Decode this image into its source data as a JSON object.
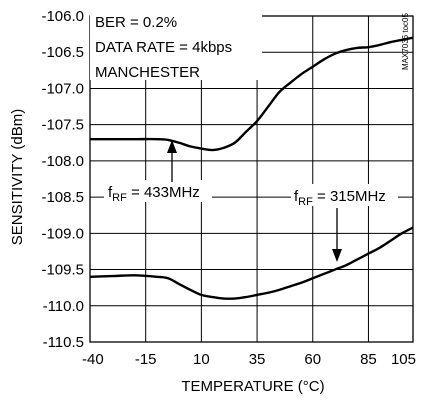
{
  "chart_data": {
    "type": "line",
    "title": "",
    "xlabel": "TEMPERATURE (°C)",
    "ylabel": "SENSITIVITY (dBm)",
    "xlim": [
      -40,
      105
    ],
    "ylim": [
      -110.5,
      -106.0
    ],
    "xticks": [
      -40,
      -15,
      10,
      35,
      60,
      85,
      105
    ],
    "xtick_labels": [
      "-40",
      "-15",
      "10",
      "35",
      "60",
      "85",
      "105"
    ],
    "yticks": [
      -106.0,
      -106.5,
      -107.0,
      -107.5,
      -108.0,
      -108.5,
      -109.0,
      -109.5,
      -110.0,
      -110.5
    ],
    "ytick_labels": [
      "-106.0",
      "-106.5",
      "-107.0",
      "-107.5",
      "-108.0",
      "-108.5",
      "-109.0",
      "-109.5",
      "-110.0",
      "-110.5"
    ],
    "grid": true,
    "legend": "none",
    "annotations": {
      "conditions": [
        "BER = 0.2%",
        "DATA RATE = 4kbps",
        "MANCHESTER"
      ],
      "watermark": "MAX7036 toc05",
      "label_433": {
        "prefix": "f",
        "sub": "RF",
        "suffix": " = 433MHz"
      },
      "label_315": {
        "prefix": "f",
        "sub": "RF",
        "suffix": " = 315MHz"
      }
    },
    "series": [
      {
        "x": [
          -40,
          -30,
          -20,
          -10,
          -5,
          0,
          5,
          10,
          15,
          20,
          25,
          30,
          35,
          40,
          45,
          50,
          55,
          60,
          65,
          70,
          75,
          80,
          85,
          90,
          95,
          100,
          105
        ],
        "values": [
          -107.7,
          -107.7,
          -107.7,
          -107.7,
          -107.71,
          -107.75,
          -107.8,
          -107.83,
          -107.85,
          -107.82,
          -107.75,
          -107.6,
          -107.45,
          -107.25,
          -107.05,
          -106.92,
          -106.8,
          -106.7,
          -106.6,
          -106.52,
          -106.47,
          -106.44,
          -106.43,
          -106.4,
          -106.36,
          -106.33,
          -106.3
        ]
      },
      {
        "x": [
          -40,
          -30,
          -20,
          -10,
          -5,
          0,
          5,
          10,
          15,
          20,
          25,
          30,
          35,
          40,
          45,
          50,
          55,
          60,
          65,
          70,
          75,
          80,
          85,
          90,
          95,
          100,
          105
        ],
        "values": [
          -109.6,
          -109.59,
          -109.58,
          -109.6,
          -109.62,
          -109.7,
          -109.78,
          -109.85,
          -109.88,
          -109.9,
          -109.9,
          -109.88,
          -109.85,
          -109.82,
          -109.78,
          -109.73,
          -109.68,
          -109.62,
          -109.56,
          -109.5,
          -109.44,
          -109.36,
          -109.28,
          -109.2,
          -109.1,
          -109.0,
          -108.92
        ]
      }
    ]
  },
  "colors": {
    "line": "#000000",
    "grid": "#000000",
    "background": "#ffffff"
  }
}
